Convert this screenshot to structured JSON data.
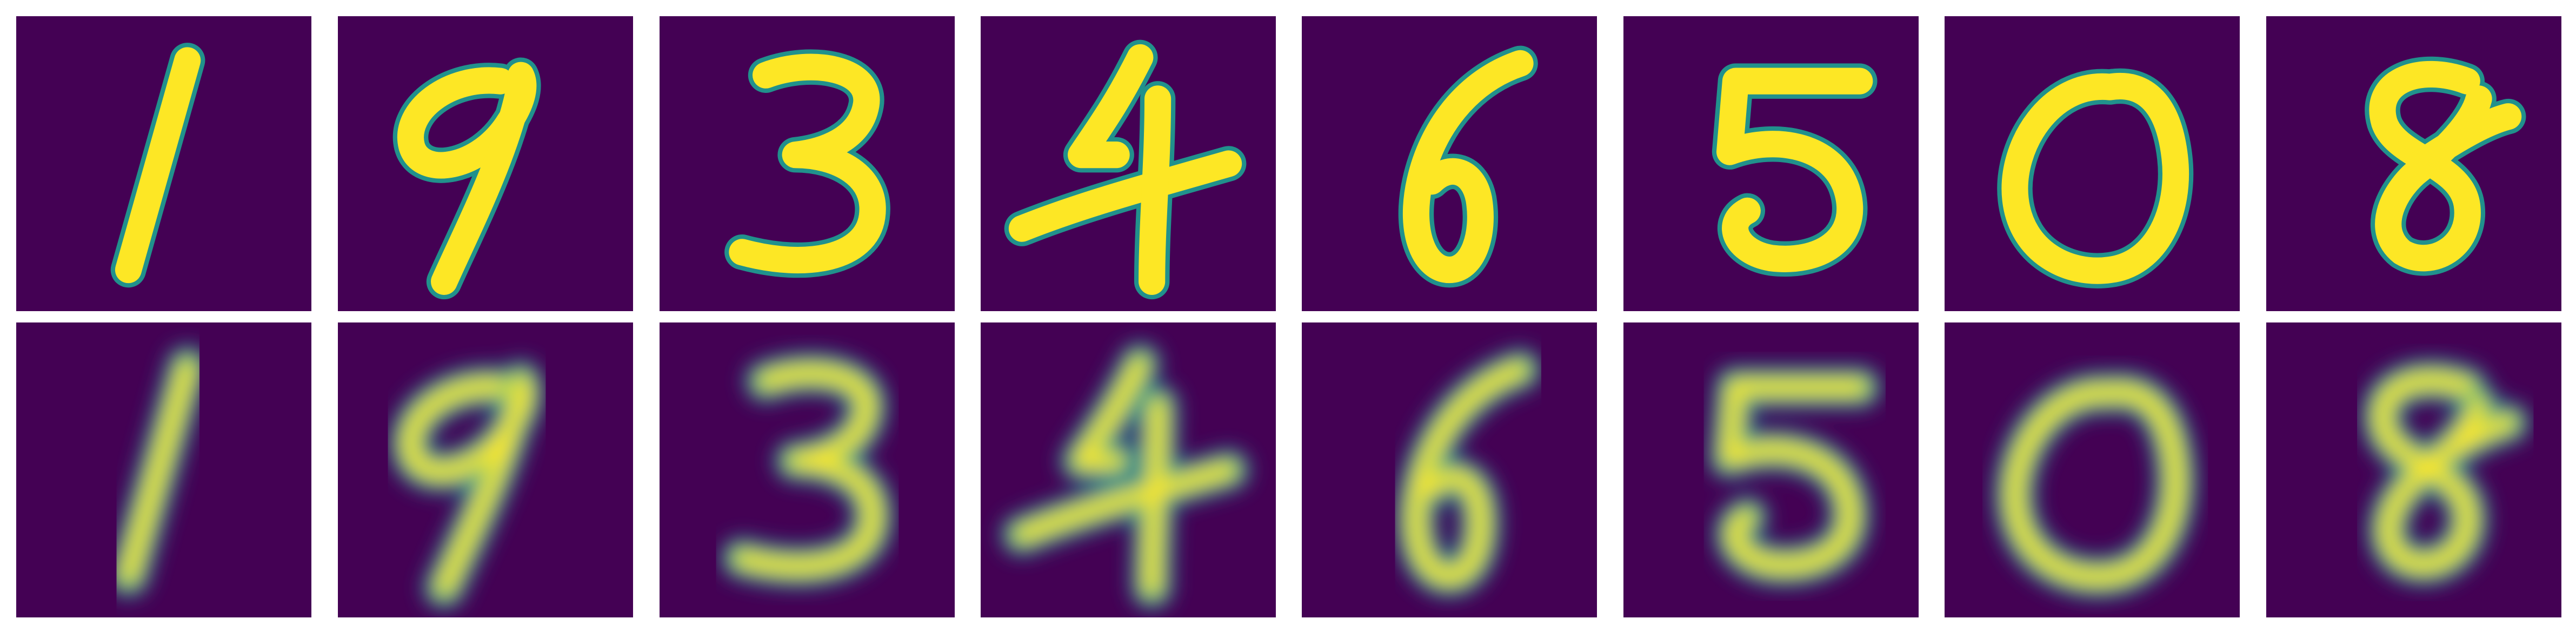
{
  "figure": {
    "background": "#ffffff",
    "colormap": "viridis",
    "colormap_colors": {
      "low": "#440154",
      "mid_low": "#31688e",
      "mid": "#21918c",
      "mid_high": "#5ec962",
      "high": "#fde725"
    },
    "grid": {
      "rows": 2,
      "columns": 8
    },
    "axes_visible": false
  },
  "rows": [
    {
      "row_id": "original",
      "style": "sharp",
      "digits": [
        "1",
        "9",
        "3",
        "4",
        "6",
        "5",
        "0",
        "8"
      ]
    },
    {
      "row_id": "reconstruction",
      "style": "blurred",
      "digits": [
        "1",
        "9",
        "3",
        "4",
        "6",
        "5",
        "0",
        "8"
      ]
    }
  ]
}
